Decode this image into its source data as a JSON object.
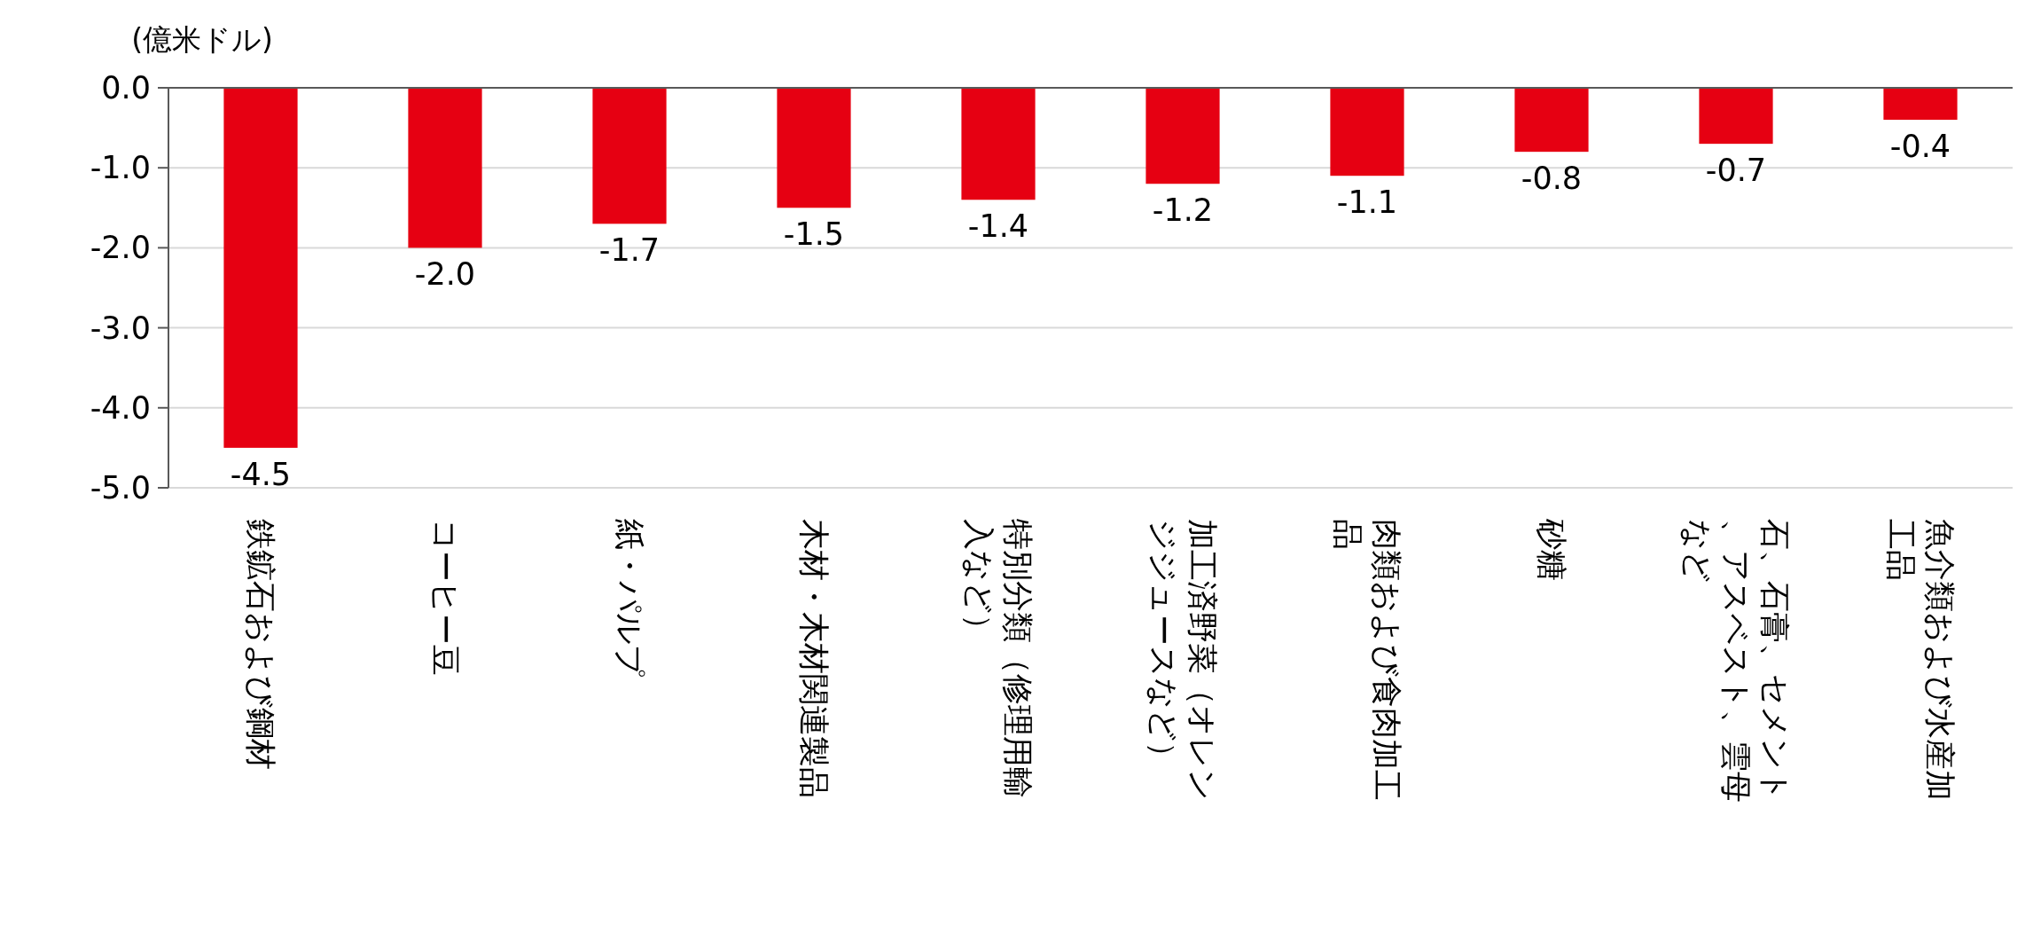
{
  "chart_data": {
    "type": "bar",
    "ylabel": "(億米ドル)",
    "categories": [
      "鉄鉱石および鋼材",
      "コーヒー豆",
      "紙・パルプ",
      "木材・木材関連製品",
      "特別分類（修理用輸入など）",
      "加工済野菜（オレンジジュースなど）",
      "肉類および食肉加工品",
      "砂糖",
      "石、石膏、セメント、アスベスト、雲母など",
      "魚介類および水産加工品"
    ],
    "values": [
      -4.5,
      -2.0,
      -1.7,
      -1.5,
      -1.4,
      -1.2,
      -1.1,
      -0.8,
      -0.7,
      -0.4
    ],
    "value_labels": [
      "-4.5",
      "-2.0",
      "-1.7",
      "-1.5",
      "-1.4",
      "-1.2",
      "-1.1",
      "-0.8",
      "-0.7",
      "-0.4"
    ],
    "color": "#e60012",
    "ylim": [
      -5,
      0
    ],
    "yticks": [
      {
        "value": 0,
        "label": "0.0"
      },
      {
        "value": -1,
        "label": "-1.0"
      },
      {
        "value": -2,
        "label": "-2.0"
      },
      {
        "value": -3,
        "label": "-3.0"
      },
      {
        "value": -4,
        "label": "-4.0"
      },
      {
        "value": -5,
        "label": "-5.0"
      }
    ],
    "grid": "y"
  }
}
